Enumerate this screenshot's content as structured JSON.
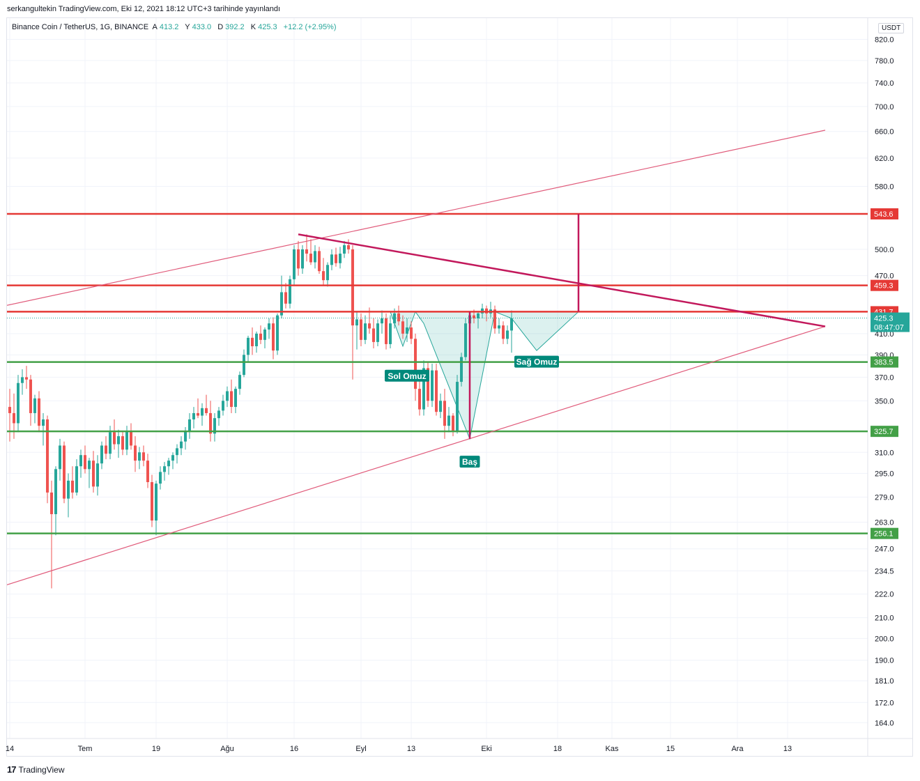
{
  "header": {
    "published": "serkangultekin TradingView.com, Eki 12, 2021 18:12 UTC+3 tarihinde yayınlandı"
  },
  "legend": {
    "symbol": "Binance Coin / TetherUS, 1G, BINANCE",
    "open_label": "A",
    "open": "413.2",
    "high_label": "Y",
    "high": "433.0",
    "low_label": "D",
    "low": "392.2",
    "close_label": "K",
    "close": "425.3",
    "change": "+12.2 (+2.95%)"
  },
  "price_scale": {
    "currency": "USDT",
    "countdown": "08:47:07"
  },
  "footer": {
    "brand": "TradingView"
  },
  "colors": {
    "up": "#26a69a",
    "down": "#ef5350",
    "resistance": "#e53935",
    "support": "#43a047",
    "trend": "#e05a7a",
    "neckline": "#c2185b",
    "pattern_fill": "#26a69a"
  },
  "chart_data": {
    "type": "candlestick",
    "title": "Binance Coin / TetherUS, 1G, BINANCE",
    "y_scale": "log",
    "ylim": [
      158,
      862
    ],
    "y_ticks": [
      "820.0",
      "780.0",
      "740.0",
      "700.0",
      "660.0",
      "620.0",
      "580.0",
      "500.0",
      "470.0",
      "410.0",
      "390.0",
      "370.0",
      "350.0",
      "310.0",
      "295.0",
      "279.0",
      "263.0",
      "247.0",
      "234.5",
      "222.0",
      "210.0",
      "200.0",
      "190.0",
      "181.0",
      "172.0",
      "164.0"
    ],
    "x_ticks": [
      "14",
      "Tem",
      "19",
      "Ağu",
      "16",
      "Eyl",
      "13",
      "Eki",
      "18",
      "Kas",
      "15",
      "Ara",
      "13"
    ],
    "x_tick_index": [
      0,
      18,
      35,
      52,
      68,
      84,
      96,
      114,
      131,
      144,
      158,
      174,
      186
    ],
    "candles": [
      {
        "o": 345,
        "h": 360,
        "l": 318,
        "c": 340
      },
      {
        "o": 340,
        "h": 356,
        "l": 320,
        "c": 332
      },
      {
        "o": 332,
        "h": 372,
        "l": 325,
        "c": 365
      },
      {
        "o": 365,
        "h": 377,
        "l": 355,
        "c": 370
      },
      {
        "o": 370,
        "h": 380,
        "l": 360,
        "c": 368
      },
      {
        "o": 368,
        "h": 372,
        "l": 330,
        "c": 340
      },
      {
        "o": 340,
        "h": 355,
        "l": 332,
        "c": 352
      },
      {
        "o": 352,
        "h": 358,
        "l": 325,
        "c": 330
      },
      {
        "o": 330,
        "h": 340,
        "l": 315,
        "c": 335
      },
      {
        "o": 335,
        "h": 338,
        "l": 275,
        "c": 282
      },
      {
        "o": 282,
        "h": 290,
        "l": 225,
        "c": 268
      },
      {
        "o": 268,
        "h": 300,
        "l": 255,
        "c": 298
      },
      {
        "o": 298,
        "h": 320,
        "l": 290,
        "c": 315
      },
      {
        "o": 315,
        "h": 318,
        "l": 275,
        "c": 278
      },
      {
        "o": 278,
        "h": 295,
        "l": 266,
        "c": 290
      },
      {
        "o": 290,
        "h": 300,
        "l": 278,
        "c": 282
      },
      {
        "o": 282,
        "h": 305,
        "l": 280,
        "c": 300
      },
      {
        "o": 300,
        "h": 312,
        "l": 292,
        "c": 308
      },
      {
        "o": 308,
        "h": 315,
        "l": 295,
        "c": 298
      },
      {
        "o": 298,
        "h": 306,
        "l": 285,
        "c": 304
      },
      {
        "o": 304,
        "h": 311,
        "l": 282,
        "c": 286
      },
      {
        "o": 286,
        "h": 308,
        "l": 280,
        "c": 302
      },
      {
        "o": 302,
        "h": 318,
        "l": 298,
        "c": 315
      },
      {
        "o": 315,
        "h": 322,
        "l": 305,
        "c": 309
      },
      {
        "o": 309,
        "h": 330,
        "l": 305,
        "c": 325
      },
      {
        "o": 325,
        "h": 335,
        "l": 312,
        "c": 316
      },
      {
        "o": 316,
        "h": 327,
        "l": 306,
        "c": 322
      },
      {
        "o": 322,
        "h": 326,
        "l": 308,
        "c": 312
      },
      {
        "o": 312,
        "h": 330,
        "l": 308,
        "c": 326
      },
      {
        "o": 326,
        "h": 332,
        "l": 312,
        "c": 315
      },
      {
        "o": 315,
        "h": 322,
        "l": 296,
        "c": 304
      },
      {
        "o": 304,
        "h": 314,
        "l": 298,
        "c": 310
      },
      {
        "o": 310,
        "h": 315,
        "l": 300,
        "c": 304
      },
      {
        "o": 304,
        "h": 309,
        "l": 285,
        "c": 289
      },
      {
        "o": 289,
        "h": 294,
        "l": 260,
        "c": 264
      },
      {
        "o": 264,
        "h": 290,
        "l": 255,
        "c": 288
      },
      {
        "o": 288,
        "h": 300,
        "l": 284,
        "c": 296
      },
      {
        "o": 296,
        "h": 303,
        "l": 290,
        "c": 300
      },
      {
        "o": 300,
        "h": 306,
        "l": 294,
        "c": 304
      },
      {
        "o": 304,
        "h": 310,
        "l": 298,
        "c": 308
      },
      {
        "o": 308,
        "h": 316,
        "l": 302,
        "c": 313
      },
      {
        "o": 313,
        "h": 322,
        "l": 308,
        "c": 318
      },
      {
        "o": 318,
        "h": 329,
        "l": 312,
        "c": 326
      },
      {
        "o": 326,
        "h": 340,
        "l": 320,
        "c": 335
      },
      {
        "o": 335,
        "h": 345,
        "l": 328,
        "c": 340
      },
      {
        "o": 340,
        "h": 352,
        "l": 336,
        "c": 338
      },
      {
        "o": 338,
        "h": 348,
        "l": 330,
        "c": 344
      },
      {
        "o": 344,
        "h": 355,
        "l": 338,
        "c": 340
      },
      {
        "o": 340,
        "h": 350,
        "l": 318,
        "c": 324
      },
      {
        "o": 324,
        "h": 340,
        "l": 318,
        "c": 336
      },
      {
        "o": 336,
        "h": 345,
        "l": 330,
        "c": 342
      },
      {
        "o": 342,
        "h": 355,
        "l": 338,
        "c": 350
      },
      {
        "o": 350,
        "h": 362,
        "l": 345,
        "c": 358
      },
      {
        "o": 358,
        "h": 368,
        "l": 340,
        "c": 345
      },
      {
        "o": 345,
        "h": 362,
        "l": 340,
        "c": 360
      },
      {
        "o": 360,
        "h": 375,
        "l": 355,
        "c": 372
      },
      {
        "o": 372,
        "h": 395,
        "l": 370,
        "c": 390
      },
      {
        "o": 390,
        "h": 408,
        "l": 384,
        "c": 406
      },
      {
        "o": 406,
        "h": 416,
        "l": 390,
        "c": 398
      },
      {
        "o": 398,
        "h": 412,
        "l": 392,
        "c": 410
      },
      {
        "o": 410,
        "h": 418,
        "l": 400,
        "c": 404
      },
      {
        "o": 404,
        "h": 416,
        "l": 396,
        "c": 414
      },
      {
        "o": 414,
        "h": 425,
        "l": 405,
        "c": 420
      },
      {
        "o": 420,
        "h": 426,
        "l": 386,
        "c": 394
      },
      {
        "o": 394,
        "h": 430,
        "l": 390,
        "c": 428
      },
      {
        "o": 428,
        "h": 470,
        "l": 425,
        "c": 452
      },
      {
        "o": 452,
        "h": 462,
        "l": 435,
        "c": 440
      },
      {
        "o": 440,
        "h": 470,
        "l": 435,
        "c": 466
      },
      {
        "o": 466,
        "h": 505,
        "l": 460,
        "c": 500
      },
      {
        "o": 500,
        "h": 510,
        "l": 470,
        "c": 478
      },
      {
        "o": 478,
        "h": 505,
        "l": 472,
        "c": 500
      },
      {
        "o": 500,
        "h": 518,
        "l": 486,
        "c": 495
      },
      {
        "o": 495,
        "h": 512,
        "l": 482,
        "c": 485
      },
      {
        "o": 485,
        "h": 505,
        "l": 478,
        "c": 498
      },
      {
        "o": 498,
        "h": 503,
        "l": 472,
        "c": 475
      },
      {
        "o": 475,
        "h": 490,
        "l": 460,
        "c": 465
      },
      {
        "o": 465,
        "h": 485,
        "l": 458,
        "c": 482
      },
      {
        "o": 482,
        "h": 500,
        "l": 476,
        "c": 494
      },
      {
        "o": 494,
        "h": 502,
        "l": 480,
        "c": 484
      },
      {
        "o": 484,
        "h": 503,
        "l": 478,
        "c": 495
      },
      {
        "o": 495,
        "h": 510,
        "l": 490,
        "c": 505
      },
      {
        "o": 505,
        "h": 512,
        "l": 495,
        "c": 500
      },
      {
        "o": 500,
        "h": 505,
        "l": 368,
        "c": 418
      },
      {
        "o": 418,
        "h": 432,
        "l": 395,
        "c": 424
      },
      {
        "o": 424,
        "h": 430,
        "l": 398,
        "c": 404
      },
      {
        "o": 404,
        "h": 428,
        "l": 400,
        "c": 420
      },
      {
        "o": 420,
        "h": 436,
        "l": 410,
        "c": 415
      },
      {
        "o": 415,
        "h": 425,
        "l": 396,
        "c": 402
      },
      {
        "o": 402,
        "h": 424,
        "l": 398,
        "c": 420
      },
      {
        "o": 420,
        "h": 433,
        "l": 410,
        "c": 425
      },
      {
        "o": 425,
        "h": 430,
        "l": 395,
        "c": 400
      },
      {
        "o": 400,
        "h": 428,
        "l": 396,
        "c": 420
      },
      {
        "o": 420,
        "h": 435,
        "l": 415,
        "c": 430
      },
      {
        "o": 430,
        "h": 438,
        "l": 418,
        "c": 422
      },
      {
        "o": 422,
        "h": 428,
        "l": 405,
        "c": 410
      },
      {
        "o": 410,
        "h": 425,
        "l": 402,
        "c": 416
      },
      {
        "o": 416,
        "h": 422,
        "l": 400,
        "c": 405
      },
      {
        "o": 405,
        "h": 410,
        "l": 350,
        "c": 360
      },
      {
        "o": 360,
        "h": 372,
        "l": 338,
        "c": 343
      },
      {
        "o": 343,
        "h": 385,
        "l": 338,
        "c": 378
      },
      {
        "o": 378,
        "h": 384,
        "l": 345,
        "c": 350
      },
      {
        "o": 350,
        "h": 382,
        "l": 345,
        "c": 376
      },
      {
        "o": 376,
        "h": 382,
        "l": 338,
        "c": 341
      },
      {
        "o": 341,
        "h": 356,
        "l": 336,
        "c": 350
      },
      {
        "o": 350,
        "h": 360,
        "l": 320,
        "c": 330
      },
      {
        "o": 330,
        "h": 345,
        "l": 325,
        "c": 338
      },
      {
        "o": 338,
        "h": 340,
        "l": 322,
        "c": 326
      },
      {
        "o": 326,
        "h": 372,
        "l": 324,
        "c": 366
      },
      {
        "o": 366,
        "h": 392,
        "l": 362,
        "c": 388
      },
      {
        "o": 388,
        "h": 425,
        "l": 385,
        "c": 420
      },
      {
        "o": 420,
        "h": 432,
        "l": 412,
        "c": 428
      },
      {
        "o": 428,
        "h": 434,
        "l": 420,
        "c": 425
      },
      {
        "o": 425,
        "h": 432,
        "l": 415,
        "c": 430
      },
      {
        "o": 430,
        "h": 440,
        "l": 425,
        "c": 435
      },
      {
        "o": 435,
        "h": 438,
        "l": 422,
        "c": 430
      },
      {
        "o": 430,
        "h": 442,
        "l": 426,
        "c": 434
      },
      {
        "o": 434,
        "h": 438,
        "l": 410,
        "c": 415
      },
      {
        "o": 415,
        "h": 425,
        "l": 410,
        "c": 418
      },
      {
        "o": 418,
        "h": 422,
        "l": 400,
        "c": 405
      },
      {
        "o": 405,
        "h": 418,
        "l": 400,
        "c": 413
      },
      {
        "o": 413,
        "h": 433,
        "l": 392,
        "c": 425
      }
    ],
    "levels": [
      {
        "value": 543.6,
        "label": "543.6",
        "kind": "resistance"
      },
      {
        "value": 459.3,
        "label": "459.3",
        "kind": "resistance"
      },
      {
        "value": 431.7,
        "label": "431.7",
        "kind": "resistance"
      },
      {
        "value": 383.5,
        "label": "383.5",
        "kind": "support"
      },
      {
        "value": 325.7,
        "label": "325.7",
        "kind": "support"
      },
      {
        "value": 256.1,
        "label": "256.1",
        "kind": "support"
      }
    ],
    "last_price": {
      "value": 425.3,
      "label": "425.3"
    },
    "trendlines": [
      {
        "name": "upper-channel",
        "from": {
          "i": -2,
          "v": 437
        },
        "to": {
          "i": 195,
          "v": 662
        }
      },
      {
        "name": "lower-channel",
        "from": {
          "i": -2,
          "v": 226
        },
        "to": {
          "i": 195,
          "v": 417
        }
      },
      {
        "name": "descending-resistance",
        "from": {
          "i": 69,
          "v": 518
        },
        "to": {
          "i": 195,
          "v": 417
        }
      },
      {
        "name": "target-projection",
        "from": {
          "i": 136,
          "v": 431.7
        },
        "to": {
          "i": 136,
          "v": 543.6
        }
      },
      {
        "name": "head-depth",
        "from": {
          "i": 110,
          "v": 431.7
        },
        "to": {
          "i": 110,
          "v": 320
        }
      }
    ],
    "pattern": {
      "name": "inverse head and shoulders",
      "points": [
        {
          "i": 91,
          "v": 431.7
        },
        {
          "i": 94,
          "v": 398
        },
        {
          "i": 97,
          "v": 431.7
        },
        {
          "i": 99,
          "v": 420
        },
        {
          "i": 110,
          "v": 320
        },
        {
          "i": 116,
          "v": 431.7
        },
        {
          "i": 120,
          "v": 425
        },
        {
          "i": 126,
          "v": 394
        },
        {
          "i": 136,
          "v": 431.7
        }
      ]
    },
    "annotations": [
      {
        "label": "Sol Omuz",
        "i": 95,
        "v": 371
      },
      {
        "label": "Baş",
        "i": 110,
        "v": 303
      },
      {
        "label": "Sağ Omuz",
        "i": 126,
        "v": 383.5
      }
    ]
  }
}
